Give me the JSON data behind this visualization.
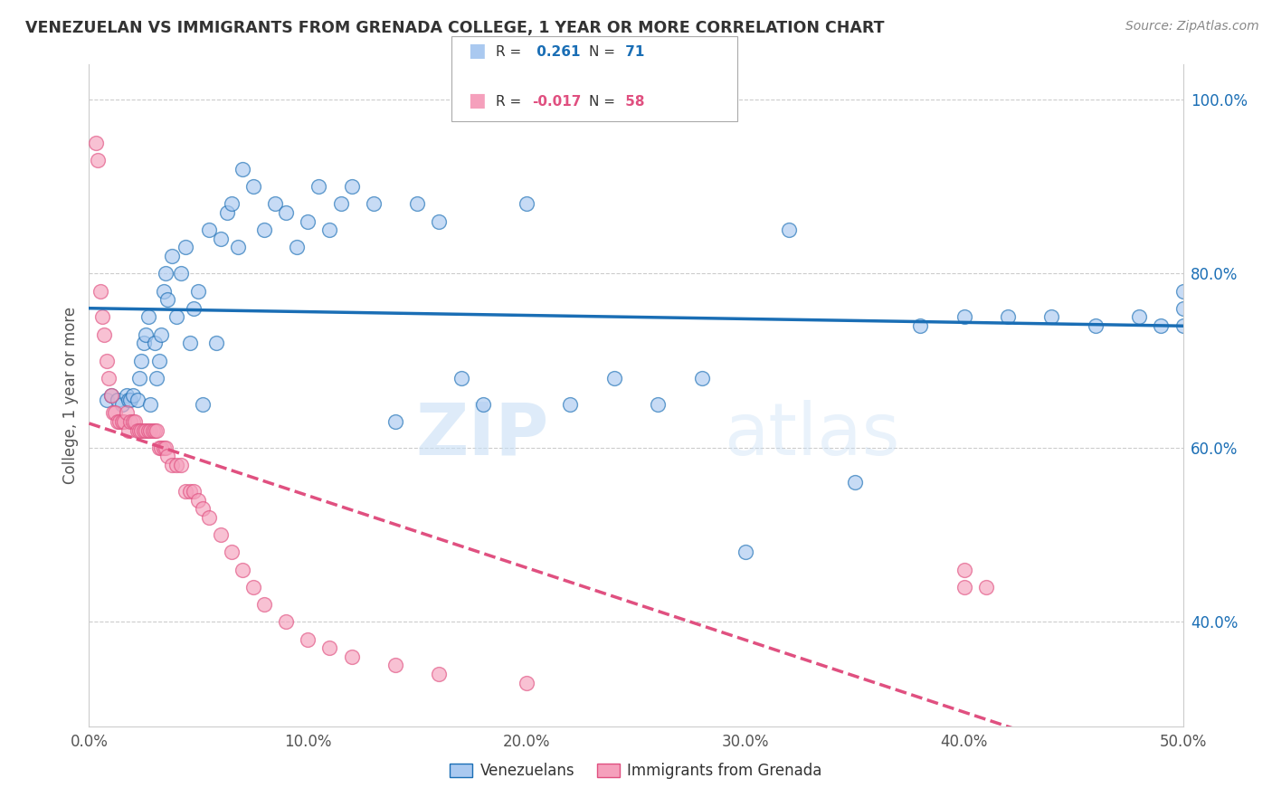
{
  "title": "VENEZUELAN VS IMMIGRANTS FROM GRENADA COLLEGE, 1 YEAR OR MORE CORRELATION CHART",
  "source": "Source: ZipAtlas.com",
  "ylabel": "College, 1 year or more",
  "xlim": [
    0.0,
    0.5
  ],
  "ylim": [
    0.28,
    1.04
  ],
  "yticks_right": [
    0.4,
    0.6,
    0.8,
    1.0
  ],
  "ytick_labels_right": [
    "40.0%",
    "60.0%",
    "80.0%",
    "100.0%"
  ],
  "xtick_vals": [
    0.0,
    0.1,
    0.2,
    0.3,
    0.4,
    0.5
  ],
  "xtick_labels": [
    "0.0%",
    "10.0%",
    "20.0%",
    "30.0%",
    "40.0%",
    "50.0%"
  ],
  "blue_R": 0.261,
  "blue_N": 71,
  "pink_R": -0.017,
  "pink_N": 58,
  "blue_color": "#aac9f0",
  "pink_color": "#f5a0bc",
  "blue_line_color": "#1a6eb5",
  "pink_line_color": "#e05080",
  "legend_label_blue": "Venezuelans",
  "legend_label_pink": "Immigrants from Grenada",
  "blue_x": [
    0.008,
    0.01,
    0.013,
    0.015,
    0.017,
    0.018,
    0.019,
    0.02,
    0.022,
    0.023,
    0.024,
    0.025,
    0.026,
    0.027,
    0.028,
    0.03,
    0.031,
    0.032,
    0.033,
    0.034,
    0.035,
    0.036,
    0.038,
    0.04,
    0.042,
    0.044,
    0.046,
    0.048,
    0.05,
    0.052,
    0.055,
    0.058,
    0.06,
    0.063,
    0.065,
    0.068,
    0.07,
    0.075,
    0.08,
    0.085,
    0.09,
    0.095,
    0.1,
    0.105,
    0.11,
    0.115,
    0.12,
    0.13,
    0.14,
    0.15,
    0.16,
    0.17,
    0.18,
    0.2,
    0.22,
    0.24,
    0.26,
    0.28,
    0.3,
    0.32,
    0.35,
    0.38,
    0.4,
    0.42,
    0.44,
    0.46,
    0.48,
    0.49,
    0.5,
    0.5,
    0.5
  ],
  "blue_y": [
    0.655,
    0.66,
    0.655,
    0.65,
    0.66,
    0.655,
    0.655,
    0.66,
    0.655,
    0.68,
    0.7,
    0.72,
    0.73,
    0.75,
    0.65,
    0.72,
    0.68,
    0.7,
    0.73,
    0.78,
    0.8,
    0.77,
    0.82,
    0.75,
    0.8,
    0.83,
    0.72,
    0.76,
    0.78,
    0.65,
    0.85,
    0.72,
    0.84,
    0.87,
    0.88,
    0.83,
    0.92,
    0.9,
    0.85,
    0.88,
    0.87,
    0.83,
    0.86,
    0.9,
    0.85,
    0.88,
    0.9,
    0.88,
    0.63,
    0.88,
    0.86,
    0.68,
    0.65,
    0.88,
    0.65,
    0.68,
    0.65,
    0.68,
    0.48,
    0.85,
    0.56,
    0.74,
    0.75,
    0.75,
    0.75,
    0.74,
    0.75,
    0.74,
    0.74,
    0.76,
    0.78
  ],
  "pink_x": [
    0.003,
    0.004,
    0.005,
    0.006,
    0.007,
    0.008,
    0.009,
    0.01,
    0.011,
    0.012,
    0.013,
    0.014,
    0.015,
    0.016,
    0.017,
    0.018,
    0.019,
    0.02,
    0.021,
    0.022,
    0.023,
    0.024,
    0.025,
    0.026,
    0.027,
    0.028,
    0.029,
    0.03,
    0.031,
    0.032,
    0.033,
    0.034,
    0.035,
    0.036,
    0.038,
    0.04,
    0.042,
    0.044,
    0.046,
    0.048,
    0.05,
    0.052,
    0.055,
    0.06,
    0.065,
    0.07,
    0.075,
    0.08,
    0.09,
    0.1,
    0.11,
    0.12,
    0.14,
    0.16,
    0.2,
    0.4,
    0.4,
    0.41
  ],
  "pink_y": [
    0.95,
    0.93,
    0.78,
    0.75,
    0.73,
    0.7,
    0.68,
    0.66,
    0.64,
    0.64,
    0.63,
    0.63,
    0.63,
    0.63,
    0.64,
    0.62,
    0.63,
    0.63,
    0.63,
    0.62,
    0.62,
    0.62,
    0.62,
    0.62,
    0.62,
    0.62,
    0.62,
    0.62,
    0.62,
    0.6,
    0.6,
    0.6,
    0.6,
    0.59,
    0.58,
    0.58,
    0.58,
    0.55,
    0.55,
    0.55,
    0.54,
    0.53,
    0.52,
    0.5,
    0.48,
    0.46,
    0.44,
    0.42,
    0.4,
    0.38,
    0.37,
    0.36,
    0.35,
    0.34,
    0.33,
    0.44,
    0.46,
    0.44
  ],
  "watermark_zip": "ZIP",
  "watermark_atlas": "atlas",
  "background_color": "#ffffff",
  "grid_color": "#cccccc"
}
